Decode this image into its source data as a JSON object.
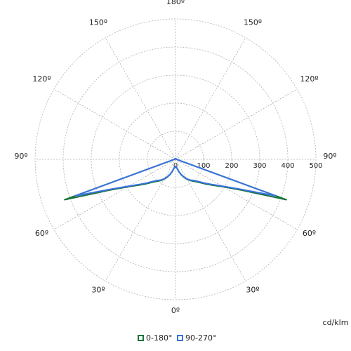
{
  "chart_data": {
    "type": "polar",
    "theta": [
      -180,
      -170,
      -160,
      -150,
      -140,
      -130,
      -120,
      -110,
      -100,
      -90,
      -85,
      -80,
      -75,
      -70,
      -65,
      -60,
      -55,
      -50,
      -45,
      -40,
      -35,
      -30,
      -25,
      -20,
      -15,
      -10,
      -5,
      0,
      5,
      10,
      15,
      20,
      25,
      30,
      35,
      40,
      45,
      50,
      55,
      60,
      65,
      70,
      75,
      80,
      85,
      90,
      100,
      110,
      120,
      130,
      140,
      150,
      160,
      170,
      180
    ],
    "series": [
      {
        "name": "0-180°",
        "color": "#17743a",
        "values": [
          3,
          3,
          3,
          3,
          3,
          3,
          3,
          3,
          3,
          4,
          5,
          8,
          15,
          420,
          260,
          195,
          160,
          135,
          115,
          102,
          92,
          82,
          70,
          58,
          45,
          33,
          27,
          25,
          27,
          33,
          45,
          58,
          70,
          82,
          92,
          102,
          115,
          135,
          160,
          195,
          260,
          420,
          15,
          8,
          5,
          4,
          3,
          3,
          3,
          3,
          3,
          3,
          3,
          3,
          3
        ]
      },
      {
        "name": "90-270°",
        "color": "#3a72e0",
        "values": [
          3,
          3,
          3,
          3,
          3,
          3,
          3,
          3,
          3,
          4,
          5,
          8,
          15,
          380,
          250,
          190,
          155,
          130,
          110,
          98,
          90,
          80,
          68,
          56,
          44,
          32,
          27,
          25,
          27,
          32,
          44,
          56,
          68,
          80,
          90,
          98,
          110,
          130,
          155,
          190,
          250,
          380,
          15,
          8,
          5,
          4,
          3,
          3,
          3,
          3,
          3,
          3,
          3,
          3,
          3
        ]
      }
    ],
    "rlim": [
      0,
      500
    ],
    "rticks": [
      0,
      100,
      200,
      300,
      400,
      500
    ],
    "thetaticks": [
      {
        "value": -150,
        "label": "150º"
      },
      {
        "value": -120,
        "label": "120º"
      },
      {
        "value": -90,
        "label": "90º"
      },
      {
        "value": -60,
        "label": "60º"
      },
      {
        "value": -30,
        "label": "30º"
      },
      {
        "value": 0,
        "label": "0º"
      },
      {
        "value": 30,
        "label": "30º"
      },
      {
        "value": 60,
        "label": "60º"
      },
      {
        "value": 90,
        "label": "90º"
      },
      {
        "value": 120,
        "label": "120º"
      },
      {
        "value": 150,
        "label": "150º"
      },
      {
        "value": 180,
        "label": "180º"
      }
    ],
    "unit_label": "cd/klm",
    "grid": true,
    "legend": "bottom"
  }
}
